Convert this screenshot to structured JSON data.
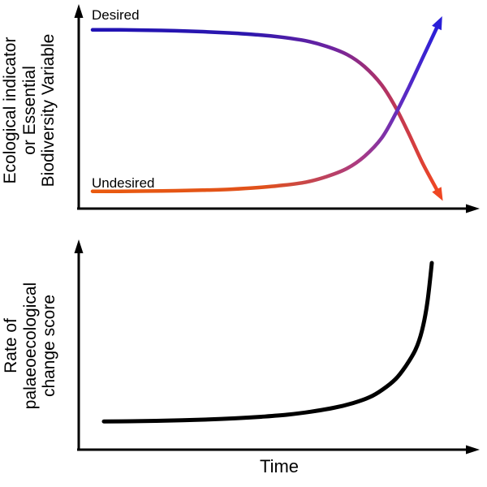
{
  "colors": {
    "background": "#ffffff",
    "axis": "#000000",
    "desired_start_blue": "#2012b4",
    "transition_purple": "#8c2d87",
    "undesired_start_orange": "#ea5a0e",
    "desired_end_red": "#ef4723",
    "undesired_end_blue": "#2a1fd8",
    "rate_curve": "#000000"
  },
  "chart_data": [
    {
      "type": "line",
      "title": "",
      "xlabel": "",
      "ylabel": "Ecological indicator or Essential Biodiversity Variable",
      "ylabel_lines": [
        "Ecological indicator",
        "or Essential",
        "Biodiversity Variable"
      ],
      "x_axis": {
        "range": [
          0,
          100
        ],
        "ticks": "none",
        "arrow": true
      },
      "y_axis": {
        "range": [
          0,
          100
        ],
        "ticks": "none",
        "arrow": true
      },
      "grid": false,
      "legend": "none",
      "annotations": [
        {
          "text": "Desired"
        },
        {
          "text": "Undesired"
        }
      ],
      "series": [
        {
          "name": "Desired",
          "x": [
            0,
            8,
            16,
            24,
            32,
            40,
            48,
            55,
            62,
            68,
            74,
            79,
            84,
            88,
            92,
            96,
            100
          ],
          "y": [
            97,
            97,
            96.8,
            96.5,
            96,
            95.3,
            94.3,
            93,
            91,
            88,
            83.5,
            77,
            67,
            55,
            40,
            24,
            10
          ],
          "gradient": [
            [
              "0%",
              "#2012b4"
            ],
            [
              "45%",
              "#2c17ae"
            ],
            [
              "70%",
              "#6f24a0"
            ],
            [
              "85%",
              "#b23364"
            ],
            [
              "100%",
              "#ef4723"
            ]
          ],
          "arrow_color": "#ef4723",
          "width": 4.5
        },
        {
          "name": "Undesired",
          "x": [
            0,
            8,
            16,
            24,
            32,
            40,
            48,
            55,
            62,
            68,
            74,
            79,
            84,
            88,
            92,
            96,
            100
          ],
          "y": [
            9,
            9,
            9.1,
            9.3,
            9.6,
            10.1,
            11,
            12.2,
            14,
            17,
            21.5,
            28,
            38,
            51,
            66,
            82,
            98
          ],
          "gradient": [
            [
              "0%",
              "#ea5a0e"
            ],
            [
              "50%",
              "#e0511c"
            ],
            [
              "78%",
              "#a93a85"
            ],
            [
              "90%",
              "#5e2cc2"
            ],
            [
              "100%",
              "#2a1fd8"
            ]
          ],
          "arrow_color": "#2a1fd8",
          "width": 4.5
        }
      ]
    },
    {
      "type": "line",
      "title": "",
      "xlabel": "Time",
      "ylabel": "Rate of palaeoecological change score",
      "ylabel_lines": [
        "Rate of",
        "palaeoecological",
        "change score"
      ],
      "x_axis": {
        "range": [
          0,
          100
        ],
        "ticks": "none",
        "arrow": true
      },
      "y_axis": {
        "range": [
          0,
          100
        ],
        "ticks": "none",
        "arrow": true
      },
      "grid": false,
      "legend": "none",
      "series": [
        {
          "name": "Rate of palaeoecological change",
          "color": "#000000",
          "width": 5,
          "x": [
            0,
            8,
            16,
            24,
            32,
            40,
            48,
            56,
            63,
            70,
            76,
            81,
            85,
            89,
            92,
            95,
            97,
            98.6,
            100
          ],
          "y": [
            10,
            10.1,
            10.3,
            10.6,
            11,
            11.6,
            12.4,
            13.5,
            15,
            17,
            19.5,
            22.5,
            26.5,
            32,
            38.5,
            47,
            57,
            71,
            92
          ]
        }
      ]
    }
  ]
}
